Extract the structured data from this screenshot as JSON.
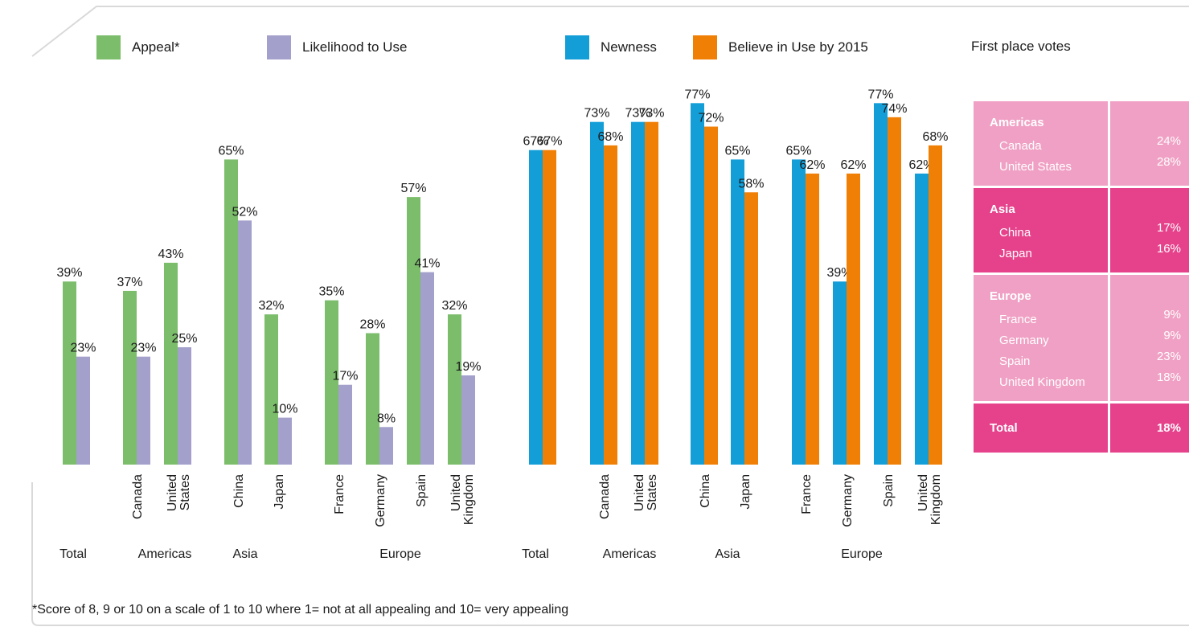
{
  "legend": {
    "appeal": {
      "label": "Appeal*",
      "color": "#7bbd6a"
    },
    "likelihood": {
      "label": "Likelihood to Use",
      "color": "#a3a1cc"
    },
    "newness": {
      "label": "Newness",
      "color": "#139ed8"
    },
    "believe": {
      "label": "Believe in Use by 2015",
      "color": "#f07f05"
    },
    "votes_title": "First place votes"
  },
  "footnote": "*Score of 8, 9 or 10 on a scale of 1 to 10 where 1= not at all appealing and 10= very appealing",
  "chart_data": [
    {
      "type": "bar",
      "ylim": [
        0,
        100
      ],
      "categories": [
        "",
        "Canada",
        "United States",
        "China",
        "Japan",
        "France",
        "Germany",
        "Spain",
        "United Kingdom"
      ],
      "groups": [
        "Total",
        "Americas",
        "Asia",
        "Europe"
      ],
      "series": [
        {
          "name": "Appeal*",
          "color": "#7bbd6a",
          "values": [
            39,
            37,
            43,
            65,
            32,
            35,
            28,
            57,
            32
          ]
        },
        {
          "name": "Likelihood to Use",
          "color": "#a3a1cc",
          "values": [
            23,
            23,
            25,
            52,
            10,
            17,
            8,
            41,
            19
          ]
        }
      ]
    },
    {
      "type": "bar",
      "ylim": [
        0,
        100
      ],
      "categories": [
        "",
        "Canada",
        "United States",
        "China",
        "Japan",
        "France",
        "Germany",
        "Spain",
        "United Kingdom"
      ],
      "groups": [
        "Total",
        "Americas",
        "Asia",
        "Europe"
      ],
      "series": [
        {
          "name": "Newness",
          "color": "#139ed8",
          "values": [
            67,
            73,
            73,
            77,
            65,
            65,
            39,
            77,
            62
          ]
        },
        {
          "name": "Believe in Use by 2015",
          "color": "#f07f05",
          "values": [
            67,
            68,
            73,
            72,
            58,
            62,
            62,
            74,
            68
          ]
        }
      ]
    }
  ],
  "votes": {
    "blocks": [
      {
        "region": "Americas",
        "color": "#f0a0c4",
        "rows": [
          {
            "country": "Canada",
            "value": "24%"
          },
          {
            "country": "United States",
            "value": "28%"
          }
        ]
      },
      {
        "region": "Asia",
        "color": "#e6418b",
        "rows": [
          {
            "country": "China",
            "value": "17%"
          },
          {
            "country": "Japan",
            "value": "16%"
          }
        ]
      },
      {
        "region": "Europe",
        "color": "#f0a0c4",
        "rows": [
          {
            "country": "France",
            "value": "9%"
          },
          {
            "country": "Germany",
            "value": "9%"
          },
          {
            "country": "Spain",
            "value": "23%"
          },
          {
            "country": "United Kingdom",
            "value": "18%"
          }
        ]
      }
    ],
    "total": {
      "label": "Total",
      "value": "18%",
      "color": "#e6418b"
    }
  }
}
